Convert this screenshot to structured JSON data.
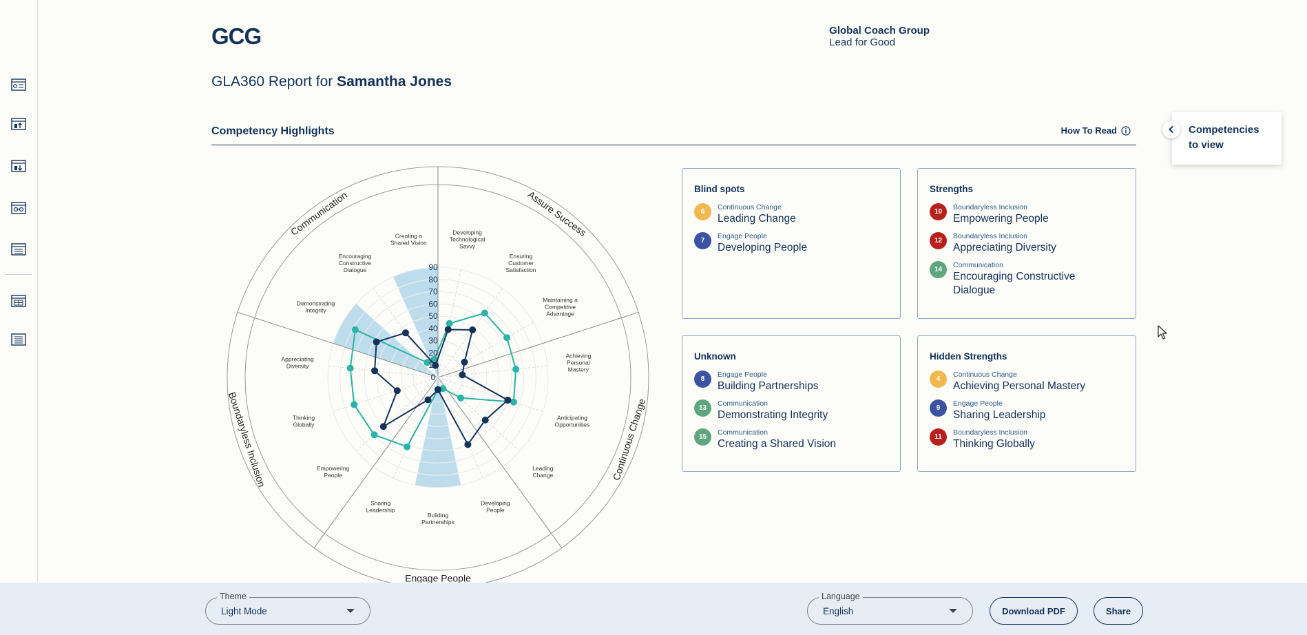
{
  "brand": {
    "logo": "GCG",
    "name": "Global Coach Group",
    "tagline": "Lead for Good"
  },
  "report": {
    "prefix": "GLA360 Report for",
    "person": "Samantha Jones"
  },
  "section": {
    "title": "Competency Highlights",
    "how_to_read": "How To Read"
  },
  "competencies_panel": {
    "line1": "Competencies",
    "line2": "to view"
  },
  "colors": {
    "navy": "#14325a",
    "teal": "#2ab3a6",
    "shade": "#a9d3e8",
    "continuous_change": "#f1b84f",
    "engage_people": "#3c53a4",
    "boundaryless_inclusion": "#b8201b",
    "communication": "#5ea67e"
  },
  "cards": {
    "blind_spots": {
      "title": "Blind spots",
      "items": [
        {
          "num": "6",
          "category": "Continuous Change",
          "name": "Leading Change"
        },
        {
          "num": "7",
          "category": "Engage People",
          "name": "Developing People"
        }
      ]
    },
    "strengths": {
      "title": "Strengths",
      "items": [
        {
          "num": "10",
          "category": "Boundaryless Inclusion",
          "name": "Empowering People"
        },
        {
          "num": "12",
          "category": "Boundaryless Inclusion",
          "name": "Appreciating Diversity"
        },
        {
          "num": "14",
          "category": "Communication",
          "name": "Encouraging Constructive",
          "name2": "Dialogue"
        }
      ]
    },
    "unknown": {
      "title": "Unknown",
      "items": [
        {
          "num": "8",
          "category": "Engage People",
          "name": "Building Partnerships"
        },
        {
          "num": "13",
          "category": "Communication",
          "name": "Demonstrating Integrity"
        },
        {
          "num": "15",
          "category": "Communication",
          "name": "Creating a Shared Vision"
        }
      ]
    },
    "hidden_strengths": {
      "title": "Hidden Strengths",
      "items": [
        {
          "num": "4",
          "category": "Continuous Change",
          "name": "Achieving Personal Mastery"
        },
        {
          "num": "9",
          "category": "Engage People",
          "name": "Sharing Leadership"
        },
        {
          "num": "11",
          "category": "Boundaryless Inclusion",
          "name": "Thinking Globally"
        }
      ]
    }
  },
  "chart_data": {
    "type": "radar",
    "r_ticks": [
      "0",
      "10",
      "20",
      "30",
      "40",
      "50",
      "60",
      "70",
      "80",
      "90"
    ],
    "groups": [
      "Assure Success",
      "Continuous Change",
      "Engage People",
      "Boundaryless Inclusion",
      "Communication"
    ],
    "axes": [
      "Developing|Technological|Savvy",
      "Ensuring|Customer|Satisfaction",
      "Maintaining a|Competitive|Advantage",
      "Achieving|Personal|Mastery",
      "Anticipating|Opportunities",
      "Leading|Change",
      "Developing|People",
      "Building|Partnerships",
      "Sharing|Leadership",
      "Empowering|People",
      "Thinking|Globally",
      "Appreciating|Diversity",
      "Demonstrating|Integrity",
      "Encouraging|Constructive|Dialogue",
      "Creating a|Shared Vision"
    ],
    "series": [
      {
        "color": "teal",
        "values": [
          45,
          65,
          65,
          64,
          65,
          25,
          10,
          10,
          62,
          70,
          72,
          72,
          78,
          15,
          15
        ]
      },
      {
        "color": "navy",
        "values": [
          40,
          48,
          25,
          20,
          60,
          52,
          60,
          10,
          20,
          60,
          35,
          52,
          58,
          45,
          10
        ]
      },
      {
        "color": "shade",
        "values": [
          0,
          0,
          0,
          0,
          0,
          0,
          0,
          90,
          0,
          0,
          0,
          0,
          90,
          0,
          90
        ]
      }
    ]
  },
  "footer": {
    "theme_label": "Theme",
    "theme_value": "Light Mode",
    "language_label": "Language",
    "language_value": "English",
    "download": "Download PDF",
    "share": "Share"
  }
}
